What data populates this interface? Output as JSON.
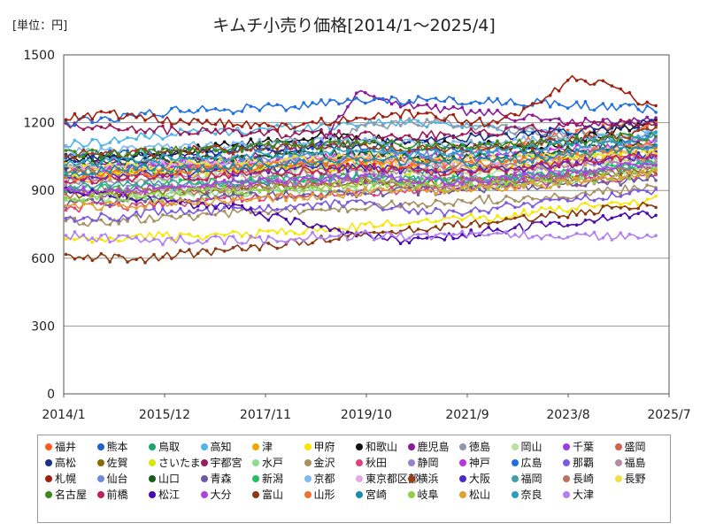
{
  "unit_label": "[単位：円]",
  "chart_data": {
    "type": "line",
    "title": "キムチ小売り価格[2014/1～2025/4]",
    "xlabel": "",
    "ylabel": "",
    "ylim": [
      0,
      1500
    ],
    "yticks": [
      0,
      300,
      600,
      900,
      1200,
      1500
    ],
    "xlim": [
      "2014/1",
      "2025/7"
    ],
    "xticks": [
      "2014/1",
      "2015/12",
      "2017/11",
      "2019/10",
      "2021/9",
      "2023/8",
      "2025/7"
    ],
    "grid": true,
    "legend_position": "bottom",
    "series": [
      {
        "name": "福井",
        "color": "#ff5a1f",
        "values": [
          1000,
          960,
          1040,
          1000,
          980,
          1020,
          990,
          1010,
          1000,
          1040,
          1080,
          1120,
          1150,
          1180,
          1200
        ]
      },
      {
        "name": "熊本",
        "color": "#1f5fcc",
        "values": [
          1060,
          1060,
          1060,
          1080,
          1080,
          1100,
          1100,
          1100,
          1080,
          1080,
          1100,
          1100,
          1120,
          1120,
          1140
        ]
      },
      {
        "name": "鳥取",
        "color": "#1aa56a",
        "values": [
          980,
          1000,
          990,
          1000,
          1010,
          1000,
          1020,
          1000,
          980,
          1000,
          1020,
          1040,
          1060,
          1080,
          1100
        ]
      },
      {
        "name": "高知",
        "color": "#4fb4e8",
        "values": [
          1100,
          1120,
          1140,
          1160,
          1160,
          1180,
          1180,
          1200,
          1200,
          1200,
          1180,
          1160,
          1160,
          1150,
          1150
        ]
      },
      {
        "name": "津",
        "color": "#f0a800",
        "values": [
          940,
          960,
          980,
          1000,
          1010,
          1000,
          1020,
          1020,
          1000,
          980,
          1000,
          1000,
          1020,
          1040,
          1060
        ]
      },
      {
        "name": "甲府",
        "color": "#f7e600",
        "values": [
          680,
          680,
          700,
          700,
          700,
          720,
          720,
          740,
          760,
          780,
          780,
          800,
          820,
          840,
          860
        ]
      },
      {
        "name": "和歌山",
        "color": "#111111",
        "values": [
          1040,
          1050,
          1060,
          1080,
          1100,
          1120,
          1140,
          1140,
          1120,
          1100,
          1100,
          1080,
          1120,
          1160,
          1200
        ]
      },
      {
        "name": "鹿児島",
        "color": "#8a1a9a",
        "values": [
          1000,
          1020,
          1020,
          1040,
          1040,
          1060,
          1100,
          1340,
          1280,
          1260,
          1240,
          1220,
          1200,
          1200,
          1220
        ]
      },
      {
        "name": "徳島",
        "color": "#8a9aa8",
        "values": [
          1000,
          1000,
          1010,
          1020,
          1030,
          1040,
          1060,
          1180,
          1200,
          1200,
          1180,
          1160,
          1140,
          1120,
          1120
        ]
      },
      {
        "name": "岡山",
        "color": "#b8e0a0",
        "values": [
          940,
          950,
          960,
          960,
          980,
          980,
          1000,
          1000,
          980,
          960,
          980,
          1000,
          1020,
          1040,
          1040
        ]
      },
      {
        "name": "千葉",
        "color": "#9b3fd6",
        "values": [
          900,
          880,
          900,
          900,
          920,
          920,
          940,
          940,
          920,
          900,
          920,
          940,
          960,
          980,
          1000
        ]
      },
      {
        "name": "盛岡",
        "color": "#d06050",
        "values": [
          980,
          990,
          1000,
          1000,
          1010,
          1020,
          1020,
          1040,
          1040,
          1020,
          1000,
          1020,
          1040,
          1060,
          1080
        ]
      },
      {
        "name": "高松",
        "color": "#1a2f8a",
        "values": [
          1040,
          1040,
          1060,
          1060,
          1080,
          1080,
          1100,
          1100,
          1120,
          1120,
          1140,
          1150,
          1160,
          1180,
          1200
        ]
      },
      {
        "name": "佐賀",
        "color": "#8a6a00",
        "values": [
          880,
          890,
          900,
          900,
          910,
          920,
          920,
          930,
          930,
          940,
          950,
          960,
          970,
          980,
          980
        ]
      },
      {
        "name": "さいたま",
        "color": "#d8e800",
        "values": [
          960,
          970,
          980,
          980,
          990,
          1000,
          1000,
          1000,
          990,
          980,
          1000,
          1020,
          1040,
          1060,
          1080
        ]
      },
      {
        "name": "宇都宮",
        "color": "#9a1a5a",
        "values": [
          1180,
          1180,
          1170,
          1160,
          1160,
          1150,
          1150,
          1140,
          1140,
          1150,
          1160,
          1170,
          1180,
          1190,
          1200
        ]
      },
      {
        "name": "水戸",
        "color": "#8ae08a",
        "values": [
          860,
          860,
          870,
          880,
          890,
          900,
          900,
          910,
          920,
          920,
          930,
          940,
          960,
          980,
          1000
        ]
      },
      {
        "name": "金沢",
        "color": "#a89060",
        "values": [
          760,
          760,
          780,
          780,
          800,
          800,
          820,
          820,
          840,
          840,
          860,
          860,
          880,
          900,
          920
        ]
      },
      {
        "name": "秋田",
        "color": "#e04080",
        "values": [
          820,
          830,
          840,
          850,
          860,
          870,
          880,
          890,
          900,
          910,
          920,
          930,
          940,
          950,
          960
        ]
      },
      {
        "name": "静岡",
        "color": "#9a80d0",
        "values": [
          900,
          910,
          920,
          920,
          930,
          940,
          950,
          960,
          960,
          950,
          960,
          980,
          1000,
          1020,
          1040
        ]
      },
      {
        "name": "神戸",
        "color": "#c030e0",
        "values": [
          1000,
          1000,
          1010,
          1020,
          1030,
          1040,
          1040,
          1060,
          1060,
          1050,
          1040,
          1060,
          1080,
          1100,
          1120
        ]
      },
      {
        "name": "広島",
        "color": "#2070e0",
        "values": [
          1200,
          1220,
          1240,
          1260,
          1260,
          1270,
          1280,
          1300,
          1300,
          1300,
          1290,
          1290,
          1280,
          1270,
          1260
        ]
      },
      {
        "name": "那覇",
        "color": "#7a5ae0",
        "values": [
          780,
          780,
          800,
          800,
          820,
          820,
          840,
          840,
          820,
          800,
          820,
          840,
          860,
          880,
          900
        ]
      },
      {
        "name": "福島",
        "color": "#b88aa0",
        "values": [
          940,
          940,
          950,
          960,
          960,
          970,
          980,
          980,
          990,
          1000,
          1000,
          1010,
          1020,
          1030,
          1040
        ]
      },
      {
        "name": "札幌",
        "color": "#a02010",
        "values": [
          1220,
          1240,
          1220,
          1200,
          1200,
          1180,
          1200,
          1220,
          1240,
          1220,
          1200,
          1260,
          1400,
          1360,
          1260
        ]
      },
      {
        "name": "仙台",
        "color": "#6a8ae0",
        "values": [
          1000,
          1010,
          1020,
          1020,
          1030,
          1040,
          1050,
          1060,
          1060,
          1050,
          1060,
          1070,
          1080,
          1090,
          1100
        ]
      },
      {
        "name": "山口",
        "color": "#1a5a1a",
        "values": [
          1020,
          1020,
          1030,
          1040,
          1040,
          1050,
          1060,
          1060,
          1050,
          1040,
          1050,
          1060,
          1080,
          1100,
          1120
        ]
      },
      {
        "name": "青森",
        "color": "#6a5aa0",
        "values": [
          840,
          850,
          860,
          860,
          870,
          880,
          880,
          890,
          900,
          900,
          910,
          920,
          930,
          940,
          960
        ]
      },
      {
        "name": "新潟",
        "color": "#20c060",
        "values": [
          900,
          910,
          920,
          930,
          940,
          950,
          960,
          960,
          950,
          940,
          950,
          960,
          980,
          1000,
          1020
        ]
      },
      {
        "name": "京都",
        "color": "#80b8f0",
        "values": [
          1080,
          1080,
          1090,
          1100,
          1100,
          1110,
          1120,
          1120,
          1110,
          1100,
          1110,
          1120,
          1130,
          1140,
          1150
        ]
      },
      {
        "name": "東京都区部",
        "color": "#e8a8e8",
        "values": [
          1000,
          1000,
          1010,
          1020,
          1020,
          1030,
          1040,
          1040,
          1030,
          1020,
          1030,
          1040,
          1060,
          1080,
          1100
        ]
      },
      {
        "name": "横浜",
        "color": "#a03a10",
        "values": [
          1060,
          1060,
          1070,
          1080,
          1080,
          1090,
          1100,
          1100,
          1090,
          1080,
          1090,
          1100,
          1120,
          1140,
          1160
        ]
      },
      {
        "name": "大阪",
        "color": "#4a2ad0",
        "values": [
          960,
          960,
          970,
          980,
          980,
          990,
          1000,
          1000,
          990,
          980,
          990,
          1000,
          1020,
          1040,
          1060
        ]
      },
      {
        "name": "福岡",
        "color": "#40a0a0",
        "values": [
          920,
          920,
          930,
          940,
          940,
          950,
          960,
          960,
          950,
          940,
          950,
          960,
          980,
          1000,
          1020
        ]
      },
      {
        "name": "長崎",
        "color": "#c07060",
        "values": [
          880,
          890,
          900,
          900,
          910,
          920,
          930,
          940,
          940,
          930,
          940,
          950,
          960,
          980,
          1000
        ]
      },
      {
        "name": "長野",
        "color": "#f0e040",
        "values": [
          1000,
          1000,
          1010,
          1020,
          1030,
          1040,
          1040,
          1050,
          1040,
          1030,
          1040,
          1050,
          1060,
          1070,
          1080
        ]
      },
      {
        "name": "名古屋",
        "color": "#3a8a1a",
        "values": [
          1060,
          1060,
          1070,
          1080,
          1090,
          1100,
          1100,
          1110,
          1100,
          1090,
          1100,
          1110,
          1120,
          1130,
          1140
        ]
      },
      {
        "name": "前橋",
        "color": "#c02060",
        "values": [
          940,
          950,
          960,
          960,
          970,
          980,
          990,
          1000,
          990,
          980,
          990,
          1000,
          1020,
          1040,
          1060
        ]
      },
      {
        "name": "松江",
        "color": "#4a0ab0",
        "values": [
          900,
          880,
          860,
          840,
          820,
          780,
          740,
          700,
          680,
          700,
          720,
          740,
          760,
          780,
          800
        ]
      },
      {
        "name": "大分",
        "color": "#b040e0",
        "values": [
          900,
          900,
          910,
          920,
          930,
          940,
          950,
          960,
          950,
          940,
          950,
          960,
          980,
          1000,
          1020
        ]
      },
      {
        "name": "富山",
        "color": "#8a3a10",
        "values": [
          600,
          600,
          600,
          620,
          640,
          660,
          680,
          700,
          720,
          740,
          760,
          780,
          800,
          820,
          840
        ]
      },
      {
        "name": "山形",
        "color": "#f07030",
        "values": [
          960,
          970,
          980,
          990,
          1000,
          1010,
          1020,
          1030,
          1020,
          1010,
          1020,
          1040,
          1060,
          1080,
          1100
        ]
      },
      {
        "name": "宮崎",
        "color": "#1a8ab0",
        "values": [
          980,
          990,
          1000,
          1000,
          1010,
          1020,
          1030,
          1040,
          1030,
          1020,
          1030,
          1040,
          1060,
          1080,
          1100
        ]
      },
      {
        "name": "岐阜",
        "color": "#90d040",
        "values": [
          860,
          870,
          880,
          890,
          900,
          910,
          920,
          930,
          920,
          910,
          920,
          930,
          940,
          960,
          980
        ]
      },
      {
        "name": "松山",
        "color": "#e0a030",
        "values": [
          820,
          830,
          840,
          850,
          860,
          870,
          880,
          890,
          900,
          900,
          910,
          920,
          940,
          960,
          980
        ]
      },
      {
        "name": "奈良",
        "color": "#2aa0c0",
        "values": [
          1020,
          1030,
          1040,
          1040,
          1050,
          1060,
          1070,
          1080,
          1070,
          1060,
          1070,
          1080,
          1100,
          1120,
          1140
        ]
      },
      {
        "name": "大津",
        "color": "#b080f0",
        "values": [
          700,
          690,
          680,
          680,
          680,
          680,
          700,
          700,
          700,
          700,
          700,
          700,
          700,
          700,
          700
        ]
      }
    ]
  }
}
